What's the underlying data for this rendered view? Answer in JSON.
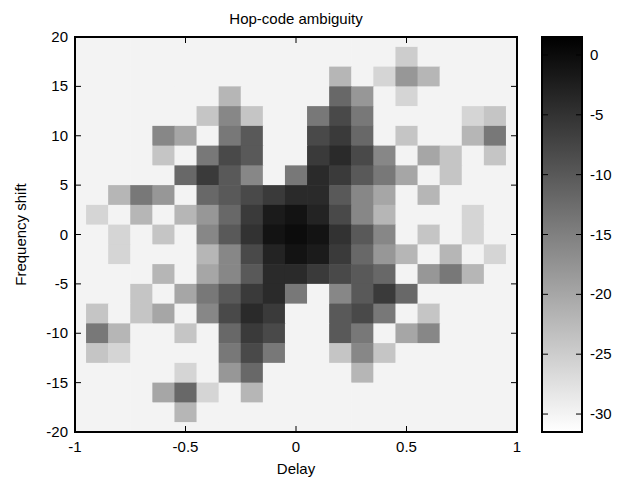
{
  "chart_data": {
    "type": "heatmap",
    "title": "Hop-code ambiguity",
    "x_label": "Delay",
    "y_label": "Frequency shift",
    "x": [
      -1,
      -0.9,
      -0.8,
      -0.7,
      -0.6,
      -0.5,
      -0.4,
      -0.3,
      -0.2,
      -0.1,
      0,
      0.1,
      0.2,
      0.3,
      0.4,
      0.5,
      0.6,
      0.7,
      0.8,
      0.9,
      1
    ],
    "y": [
      20,
      18,
      16,
      14,
      12,
      10,
      8,
      6,
      4,
      2,
      0,
      -2,
      -4,
      -6,
      -8,
      -10,
      -12,
      -14,
      -16,
      -18,
      -20
    ],
    "cells": [
      [
        -30,
        -30,
        -30,
        -30,
        -30,
        -30,
        -30,
        -30,
        -30,
        -30,
        -30,
        -30,
        -30,
        -30,
        -30,
        -30,
        -30,
        -30,
        -30,
        -30,
        -30
      ],
      [
        -30,
        -30,
        -30,
        -30,
        -30,
        -30,
        -30,
        -30,
        -30,
        -30,
        -30,
        -30,
        -30,
        -30,
        -30,
        -25,
        -30,
        -30,
        -30,
        -30,
        -30
      ],
      [
        -30,
        -30,
        -30,
        -30,
        -30,
        -30,
        -30,
        -30,
        -30,
        -30,
        -30,
        -30,
        -22,
        -30,
        -26,
        -18,
        -22,
        -30,
        -30,
        -30,
        -30
      ],
      [
        -30,
        -30,
        -30,
        -30,
        -30,
        -30,
        -30,
        -22,
        -30,
        -30,
        -30,
        -30,
        -12,
        -18,
        -30,
        -26,
        -30,
        -30,
        -30,
        -30,
        -30
      ],
      [
        -30,
        -30,
        -30,
        -30,
        -30,
        -30,
        -24,
        -16,
        -24,
        -30,
        -30,
        -14,
        -8,
        -14,
        -30,
        -30,
        -30,
        -30,
        -26,
        -24,
        -30
      ],
      [
        -30,
        -30,
        -30,
        -30,
        -16,
        -20,
        -30,
        -14,
        -10,
        -30,
        -30,
        -8,
        -6,
        -12,
        -30,
        -24,
        -30,
        -30,
        -22,
        -14,
        -30
      ],
      [
        -30,
        -30,
        -30,
        -30,
        -24,
        -30,
        -14,
        -8,
        -10,
        -30,
        -30,
        -6,
        -4,
        -8,
        -16,
        -30,
        -20,
        -24,
        -30,
        -24,
        -30
      ],
      [
        -30,
        -30,
        -30,
        -30,
        -30,
        -12,
        -6,
        -10,
        -16,
        -30,
        -14,
        -4,
        -6,
        -10,
        -14,
        -20,
        -30,
        -24,
        -30,
        -30,
        -30
      ],
      [
        -30,
        -30,
        -22,
        -14,
        -18,
        -30,
        -12,
        -10,
        -8,
        -6,
        -4,
        -4,
        -10,
        -16,
        -20,
        -30,
        -22,
        -30,
        -30,
        -30,
        -30
      ],
      [
        -30,
        -26,
        -30,
        -22,
        -30,
        -22,
        -18,
        -12,
        -6,
        -2,
        -1,
        -3,
        -8,
        -16,
        -22,
        -30,
        -30,
        -30,
        -26,
        -30,
        -30
      ],
      [
        -30,
        -30,
        -26,
        -30,
        -24,
        -30,
        -16,
        -10,
        -5,
        -1,
        0,
        -1,
        -5,
        -10,
        -16,
        -30,
        -24,
        -30,
        -26,
        -30,
        -30
      ],
      [
        -30,
        -30,
        -26,
        -30,
        -30,
        -30,
        -22,
        -16,
        -8,
        -3,
        -1,
        -2,
        -6,
        -12,
        -18,
        -22,
        -30,
        -22,
        -30,
        -26,
        -30
      ],
      [
        -30,
        -30,
        -30,
        -30,
        -22,
        -30,
        -20,
        -16,
        -10,
        -4,
        -4,
        -6,
        -8,
        -10,
        -12,
        -30,
        -18,
        -14,
        -22,
        -30,
        -30
      ],
      [
        -30,
        -30,
        -30,
        -24,
        -30,
        -20,
        -14,
        -10,
        -6,
        -4,
        -14,
        -30,
        -16,
        -10,
        -6,
        -12,
        -30,
        -30,
        -30,
        -30,
        -30
      ],
      [
        -30,
        -24,
        -30,
        -24,
        -20,
        -30,
        -16,
        -8,
        -4,
        -6,
        -30,
        -30,
        -10,
        -8,
        -14,
        -30,
        -24,
        -30,
        -30,
        -30,
        -30
      ],
      [
        -30,
        -14,
        -22,
        -30,
        -30,
        -24,
        -30,
        -12,
        -6,
        -8,
        -30,
        -30,
        -10,
        -14,
        -30,
        -20,
        -16,
        -30,
        -30,
        -30,
        -30
      ],
      [
        -30,
        -24,
        -26,
        -30,
        -30,
        -30,
        -30,
        -14,
        -8,
        -14,
        -30,
        -30,
        -24,
        -16,
        -24,
        -30,
        -30,
        -30,
        -30,
        -30,
        -30
      ],
      [
        -30,
        -30,
        -30,
        -30,
        -30,
        -26,
        -30,
        -18,
        -12,
        -30,
        -30,
        -30,
        -30,
        -22,
        -30,
        -30,
        -30,
        -30,
        -30,
        -30,
        -30
      ],
      [
        -30,
        -30,
        -30,
        -30,
        -20,
        -12,
        -26,
        -30,
        -22,
        -30,
        -30,
        -30,
        -30,
        -30,
        -30,
        -30,
        -30,
        -30,
        -30,
        -30,
        -30
      ],
      [
        -30,
        -30,
        -30,
        -30,
        -30,
        -22,
        -30,
        -30,
        -30,
        -30,
        -30,
        -30,
        -30,
        -30,
        -30,
        -30,
        -30,
        -30,
        -30,
        -30,
        -30
      ],
      [
        -30,
        -30,
        -30,
        -30,
        -30,
        -30,
        -30,
        -30,
        -30,
        -30,
        -30,
        -30,
        -30,
        -30,
        -30,
        -30,
        -30,
        -30,
        -30,
        -30,
        -30
      ]
    ],
    "xlim": [
      -1,
      1
    ],
    "ylim": [
      -20,
      20
    ],
    "xticks": [
      -1,
      -0.5,
      0,
      0.5,
      1
    ],
    "yticks": [
      -20,
      -15,
      -10,
      -5,
      0,
      5,
      10,
      15,
      20
    ],
    "color_range": [
      -31.5,
      1.5
    ],
    "color_ticks": [
      0,
      -5,
      -10,
      -15,
      -20,
      -25,
      -30
    ]
  }
}
